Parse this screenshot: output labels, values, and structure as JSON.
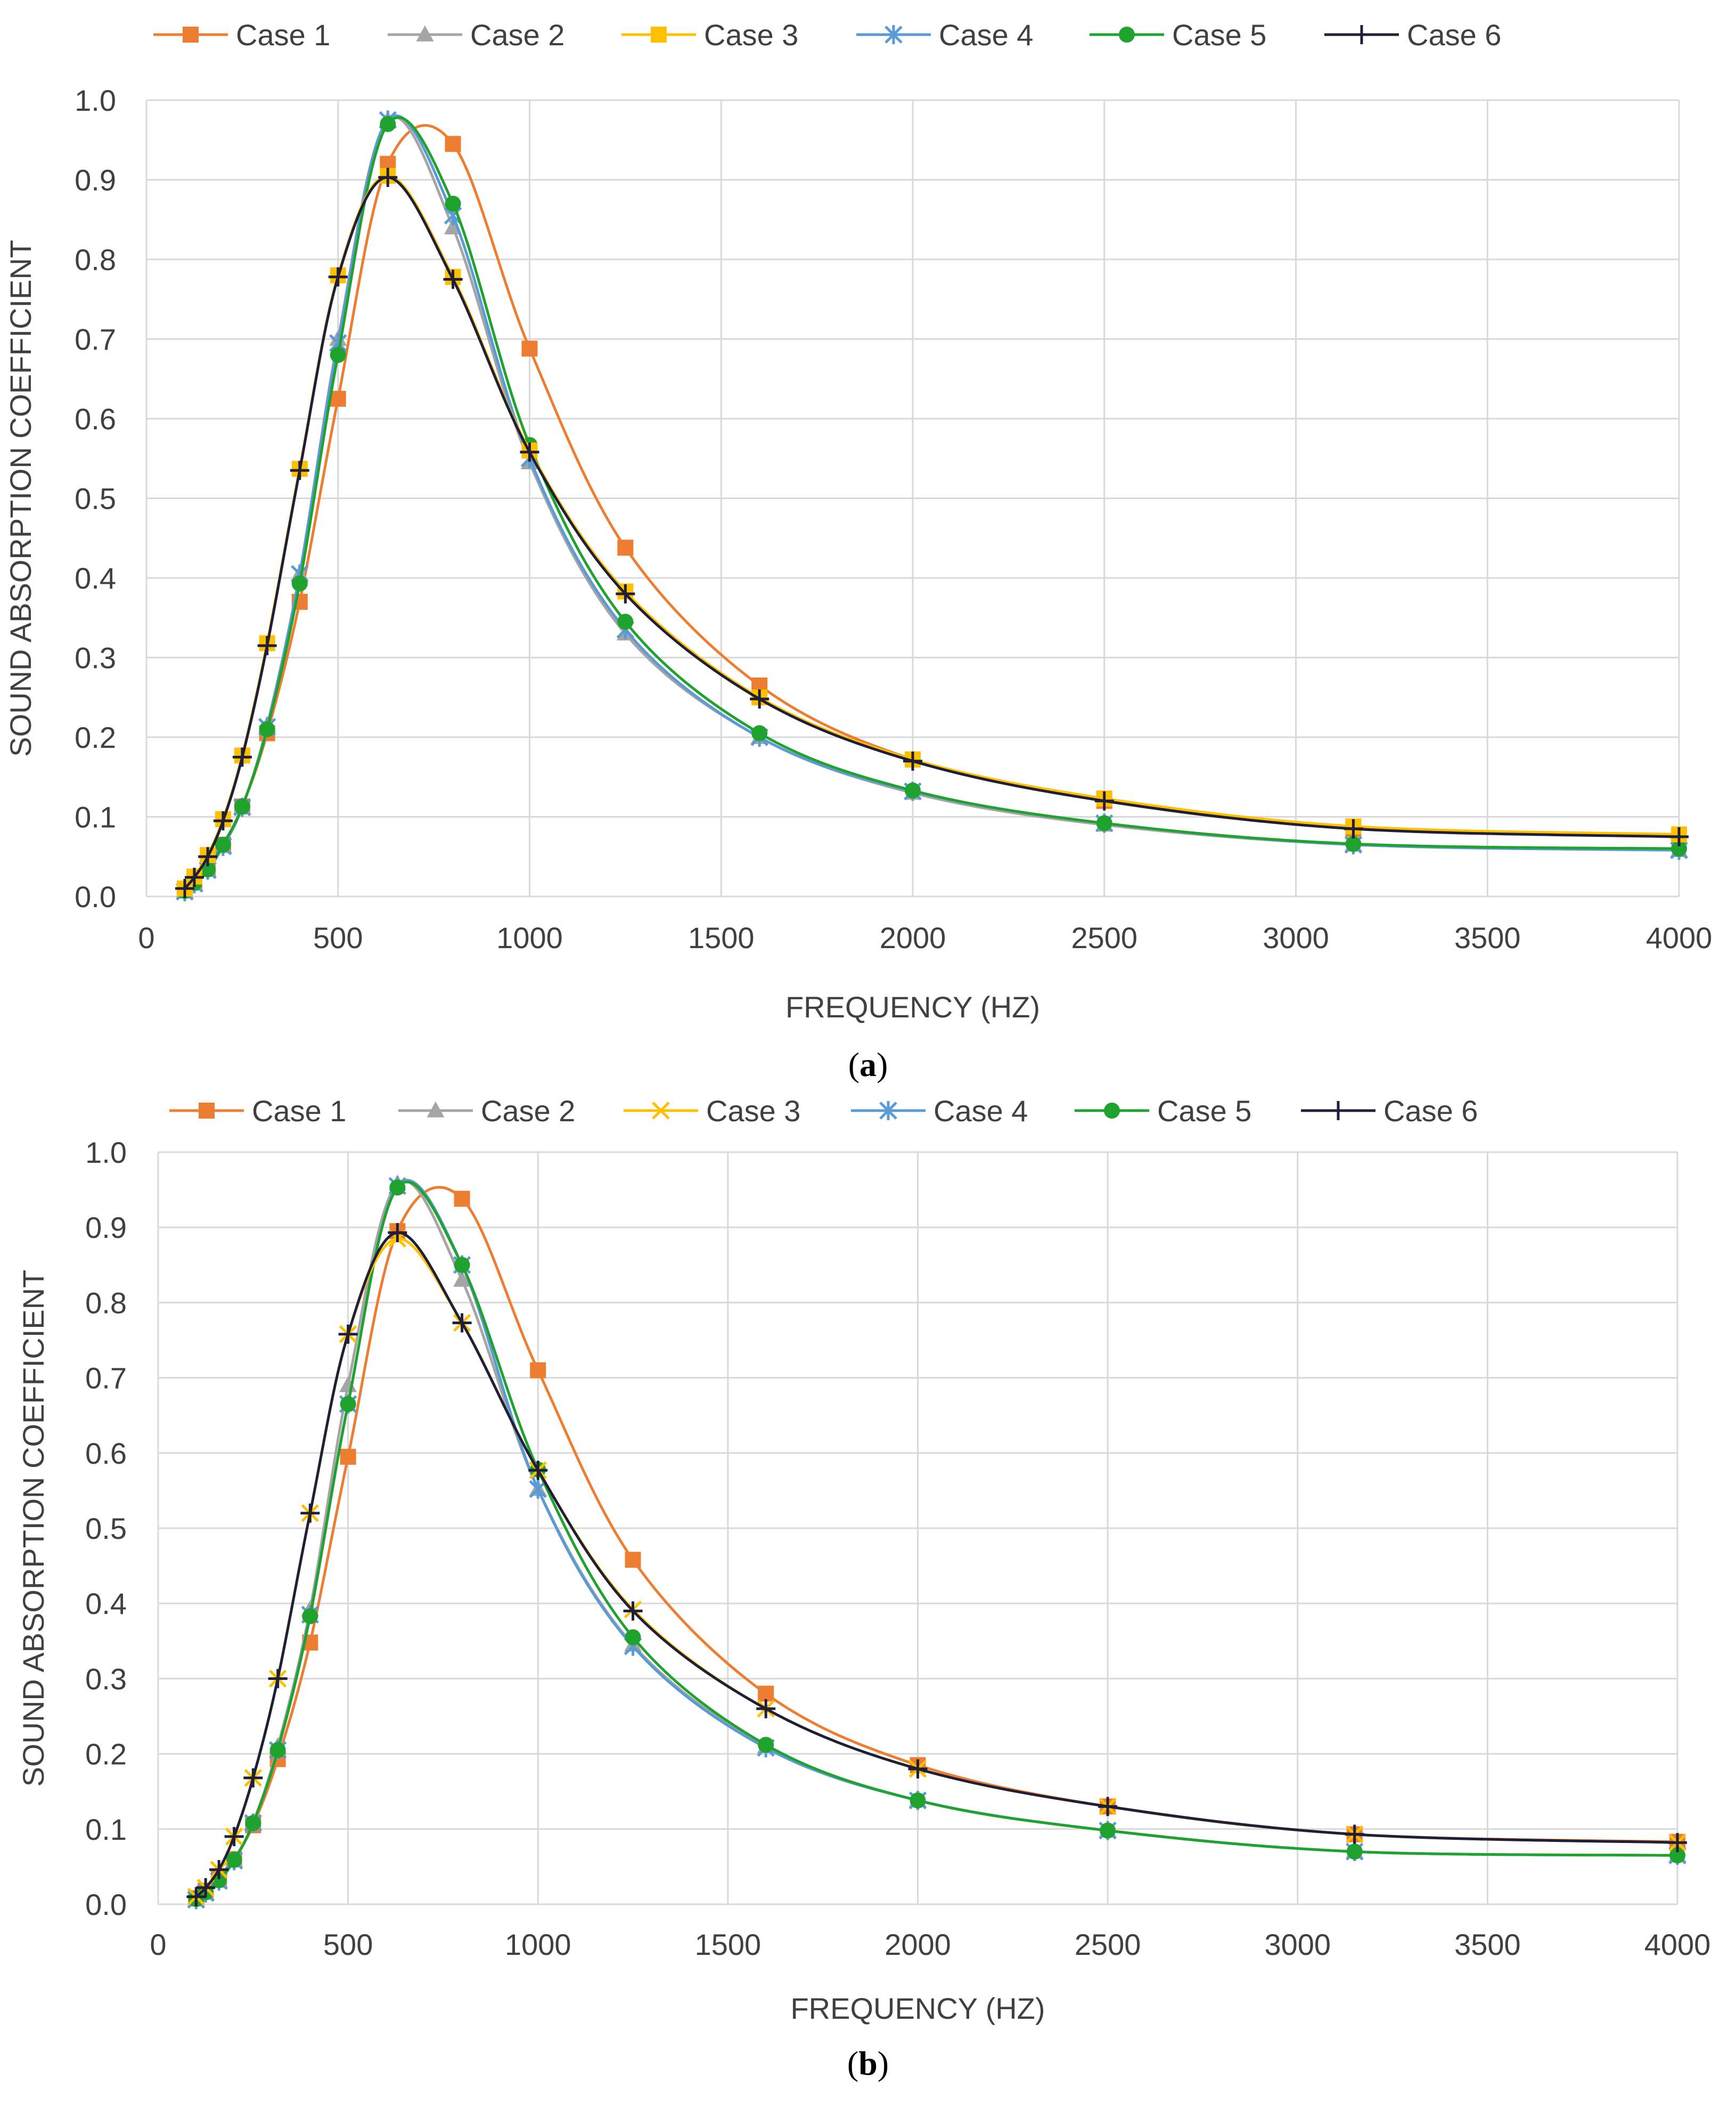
{
  "chart_data": [
    {
      "type": "line",
      "panel_label": "a",
      "xlabel": "FREQUENCY (HZ)",
      "ylabel": "SOUND ABSORPTION COEFFICIENT",
      "xlim": [
        0,
        4000
      ],
      "ylim": [
        0,
        1.0
      ],
      "xticks": [
        0,
        500,
        1000,
        1500,
        2000,
        2500,
        3000,
        3500,
        4000
      ],
      "yticks": [
        "0.0",
        "0.1",
        "0.2",
        "0.3",
        "0.4",
        "0.5",
        "0.6",
        "0.7",
        "0.8",
        "0.9",
        "1.0"
      ],
      "grid": true,
      "legend_position": "top",
      "x": [
        100,
        125,
        160,
        200,
        250,
        315,
        400,
        500,
        630,
        800,
        1000,
        1250,
        1600,
        2000,
        2500,
        3150,
        4000
      ],
      "series": [
        {
          "name": "Case 1",
          "color": "#ED7D31",
          "marker": "square",
          "values": [
            0.008,
            0.018,
            0.035,
            0.065,
            0.113,
            0.205,
            0.37,
            0.625,
            0.92,
            0.945,
            0.688,
            0.438,
            0.265,
            0.172,
            0.12,
            0.085,
            0.075
          ]
        },
        {
          "name": "Case 2",
          "color": "#A5A5A5",
          "marker": "triangle",
          "values": [
            0.006,
            0.016,
            0.033,
            0.063,
            0.112,
            0.215,
            0.405,
            0.7,
            0.975,
            0.84,
            0.545,
            0.33,
            0.2,
            0.13,
            0.09,
            0.065,
            0.058
          ]
        },
        {
          "name": "Case 3",
          "color": "#FFC000",
          "marker": "square",
          "values": [
            0.01,
            0.025,
            0.052,
            0.097,
            0.177,
            0.318,
            0.537,
            0.78,
            0.905,
            0.778,
            0.56,
            0.383,
            0.25,
            0.172,
            0.123,
            0.088,
            0.078
          ]
        },
        {
          "name": "Case 4",
          "color": "#5B9BD5",
          "marker": "star",
          "values": [
            0.006,
            0.016,
            0.033,
            0.063,
            0.112,
            0.213,
            0.405,
            0.695,
            0.975,
            0.855,
            0.55,
            0.335,
            0.2,
            0.132,
            0.092,
            0.065,
            0.058
          ]
        },
        {
          "name": "Case 5",
          "color": "#1FA22E",
          "marker": "circle",
          "values": [
            0.007,
            0.017,
            0.034,
            0.065,
            0.113,
            0.21,
            0.393,
            0.68,
            0.97,
            0.87,
            0.567,
            0.345,
            0.205,
            0.133,
            0.092,
            0.066,
            0.06
          ]
        },
        {
          "name": "Case 6",
          "color": "#1F1F3A",
          "marker": "plus",
          "values": [
            0.01,
            0.024,
            0.05,
            0.095,
            0.175,
            0.315,
            0.535,
            0.778,
            0.903,
            0.775,
            0.558,
            0.38,
            0.248,
            0.17,
            0.12,
            0.085,
            0.075
          ]
        }
      ]
    },
    {
      "type": "line",
      "panel_label": "b",
      "xlabel": "FREQUENCY (HZ)",
      "ylabel": "SOUND ABSORPTION COEFFICIENT",
      "xlim": [
        0,
        4000
      ],
      "ylim": [
        0,
        1.0
      ],
      "xticks": [
        0,
        500,
        1000,
        1500,
        2000,
        2500,
        3000,
        3500,
        4000
      ],
      "yticks": [
        "0.0",
        "0.1",
        "0.2",
        "0.3",
        "0.4",
        "0.5",
        "0.6",
        "0.7",
        "0.8",
        "0.9",
        "1.0"
      ],
      "grid": true,
      "legend_position": "top",
      "x": [
        100,
        125,
        160,
        200,
        250,
        315,
        400,
        500,
        630,
        800,
        1000,
        1250,
        1600,
        2000,
        2500,
        3150,
        4000
      ],
      "series": [
        {
          "name": "Case 1",
          "color": "#ED7D31",
          "marker": "square",
          "values": [
            0.008,
            0.018,
            0.034,
            0.06,
            0.105,
            0.193,
            0.348,
            0.595,
            0.895,
            0.938,
            0.71,
            0.458,
            0.28,
            0.185,
            0.13,
            0.093,
            0.083
          ]
        },
        {
          "name": "Case 2",
          "color": "#A5A5A5",
          "marker": "triangle",
          "values": [
            0.006,
            0.015,
            0.031,
            0.058,
            0.108,
            0.21,
            0.392,
            0.69,
            0.958,
            0.83,
            0.552,
            0.345,
            0.21,
            0.138,
            0.098,
            0.07,
            0.065
          ]
        },
        {
          "name": "Case 3",
          "color": "#FFC000",
          "marker": "x",
          "values": [
            0.01,
            0.022,
            0.046,
            0.09,
            0.168,
            0.3,
            0.52,
            0.758,
            0.885,
            0.773,
            0.577,
            0.392,
            0.26,
            0.18,
            0.13,
            0.093,
            0.082
          ]
        },
        {
          "name": "Case 4",
          "color": "#5B9BD5",
          "marker": "star",
          "values": [
            0.006,
            0.015,
            0.031,
            0.058,
            0.108,
            0.205,
            0.385,
            0.665,
            0.955,
            0.85,
            0.552,
            0.343,
            0.208,
            0.138,
            0.098,
            0.07,
            0.065
          ]
        },
        {
          "name": "Case 5",
          "color": "#1FA22E",
          "marker": "circle",
          "values": [
            0.007,
            0.016,
            0.032,
            0.059,
            0.108,
            0.205,
            0.383,
            0.665,
            0.953,
            0.85,
            0.578,
            0.355,
            0.212,
            0.138,
            0.098,
            0.07,
            0.065
          ]
        },
        {
          "name": "Case 6",
          "color": "#1F1F3A",
          "marker": "plus",
          "values": [
            0.01,
            0.022,
            0.046,
            0.09,
            0.168,
            0.3,
            0.52,
            0.758,
            0.893,
            0.773,
            0.577,
            0.39,
            0.26,
            0.18,
            0.13,
            0.093,
            0.082
          ]
        }
      ]
    }
  ]
}
